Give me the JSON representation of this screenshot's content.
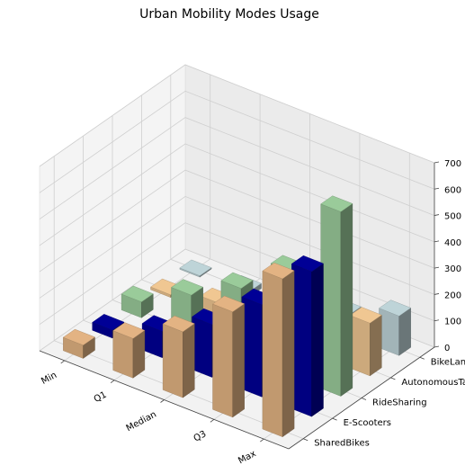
{
  "chart_data": {
    "type": "bar3d",
    "title": "Urban Mobility Modes Usage",
    "x_categories": [
      "Min",
      "Q1",
      "Median",
      "Q3",
      "Max"
    ],
    "y_categories": [
      "SharedBikes",
      "E-Scooters",
      "RideSharing",
      "AutonomousTaxis",
      "BikeLanes"
    ],
    "z_ticks": [
      0,
      100,
      200,
      300,
      400,
      500,
      600,
      700
    ],
    "zlim": [
      0,
      700
    ],
    "series": [
      {
        "name": "SharedBikes",
        "color": "#d2a679",
        "values": [
          50,
          150,
          250,
          400,
          600
        ]
      },
      {
        "name": "E-Scooters",
        "color": "#00008b",
        "values": [
          30,
          100,
          200,
          350,
          550
        ]
      },
      {
        "name": "RideSharing",
        "color": "#8fbc8f",
        "values": [
          60,
          160,
          260,
          400,
          700
        ]
      },
      {
        "name": "AutonomousTaxis",
        "color": "#deb887",
        "values": [
          10,
          50,
          100,
          150,
          200
        ]
      },
      {
        "name": "BikeLanes",
        "color": "#b0c4c8",
        "values": [
          5,
          20,
          40,
          80,
          150
        ]
      }
    ],
    "grid": true
  }
}
